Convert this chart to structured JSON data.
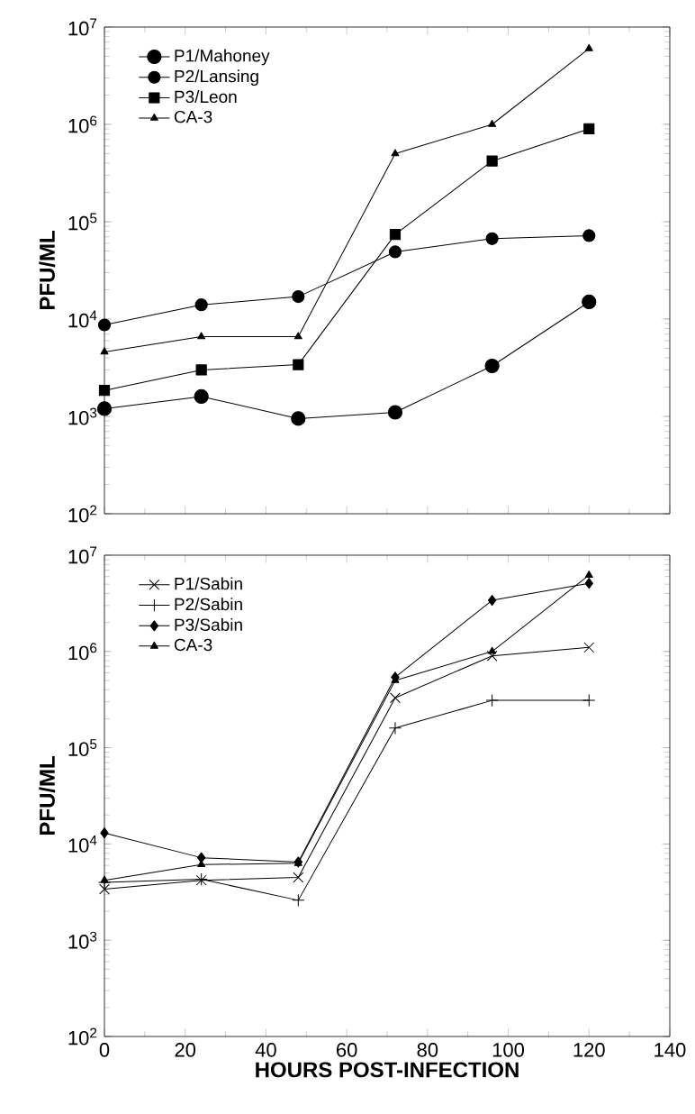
{
  "chart_data": [
    {
      "type": "line",
      "ylabel": "PFU/ML",
      "log": "y",
      "xlim": [
        0,
        140
      ],
      "xticks": [
        0,
        20,
        40,
        60,
        80,
        100,
        120,
        140
      ],
      "ylim": [
        100,
        10000000
      ],
      "yticks": [
        {
          "value": 100,
          "label": "10$^{2}$"
        },
        {
          "value": 1000,
          "label": "10$^{3}$"
        },
        {
          "value": 10000,
          "label": "10$^{4}$"
        },
        {
          "value": 100000,
          "label": "10$^{5}$"
        },
        {
          "value": 1000000,
          "label": "10$^{6}$"
        },
        {
          "value": 10000000,
          "label": "10$^{7}$"
        }
      ],
      "tick_labels": "y",
      "legend": "top left",
      "grid": false,
      "x": [
        0,
        24,
        48,
        72,
        96,
        120
      ],
      "series": [
        {
          "name": "P1/Mahoney",
          "color": "#000000",
          "marker": "circle",
          "values": [
            1200,
            1600,
            950,
            1100,
            3300,
            15000
          ]
        },
        {
          "name": "P2/Lansing",
          "color": "#000000",
          "marker": "circle",
          "values": [
            8700,
            14000,
            17000,
            49000,
            67000,
            72000
          ]
        },
        {
          "name": "P3/Leon",
          "color": "#000000",
          "marker": "square",
          "values": [
            1850,
            3000,
            3400,
            74000,
            420000,
            900000
          ]
        },
        {
          "name": "CA-3",
          "color": "#000000",
          "marker": "triangle",
          "values": [
            4600,
            6600,
            6600,
            500000,
            1000000,
            6000000
          ]
        }
      ]
    },
    {
      "type": "line",
      "xlabel": "HOURS POST-INFECTION",
      "ylabel": "PFU/ML",
      "log": "y",
      "xlim": [
        0,
        140
      ],
      "xticks": [
        0,
        20,
        40,
        60,
        80,
        100,
        120,
        140
      ],
      "ylim": [
        100,
        10000000
      ],
      "yticks": [
        {
          "value": 100,
          "label": "10$^{2}$"
        },
        {
          "value": 1000,
          "label": "10$^{3}$"
        },
        {
          "value": 10000,
          "label": "10$^{4}$"
        },
        {
          "value": 100000,
          "label": "10$^{5}$"
        },
        {
          "value": 1000000,
          "label": "10$^{6}$"
        },
        {
          "value": 10000000,
          "label": "10$^{7}$"
        }
      ],
      "legend": "top left",
      "grid": false,
      "x": [
        0,
        24,
        48,
        72,
        96,
        120
      ],
      "series": [
        {
          "name": "P1/Sabin",
          "color": "#000000",
          "marker": "cross",
          "values": [
            3400,
            4200,
            4500,
            330000,
            900000,
            1100000
          ]
        },
        {
          "name": "P2/Sabin",
          "color": "#000000",
          "marker": "plus",
          "values": [
            4000,
            4300,
            2600,
            160000,
            310000,
            310000
          ]
        },
        {
          "name": "P3/Sabin",
          "color": "#000000",
          "marker": "diamond",
          "values": [
            13000,
            7200,
            6500,
            540000,
            3400000,
            5100000
          ]
        },
        {
          "name": "CA-3",
          "color": "#000000",
          "marker": "triangle",
          "values": [
            4200,
            6100,
            6300,
            500000,
            1000000,
            6200000
          ]
        }
      ]
    }
  ]
}
